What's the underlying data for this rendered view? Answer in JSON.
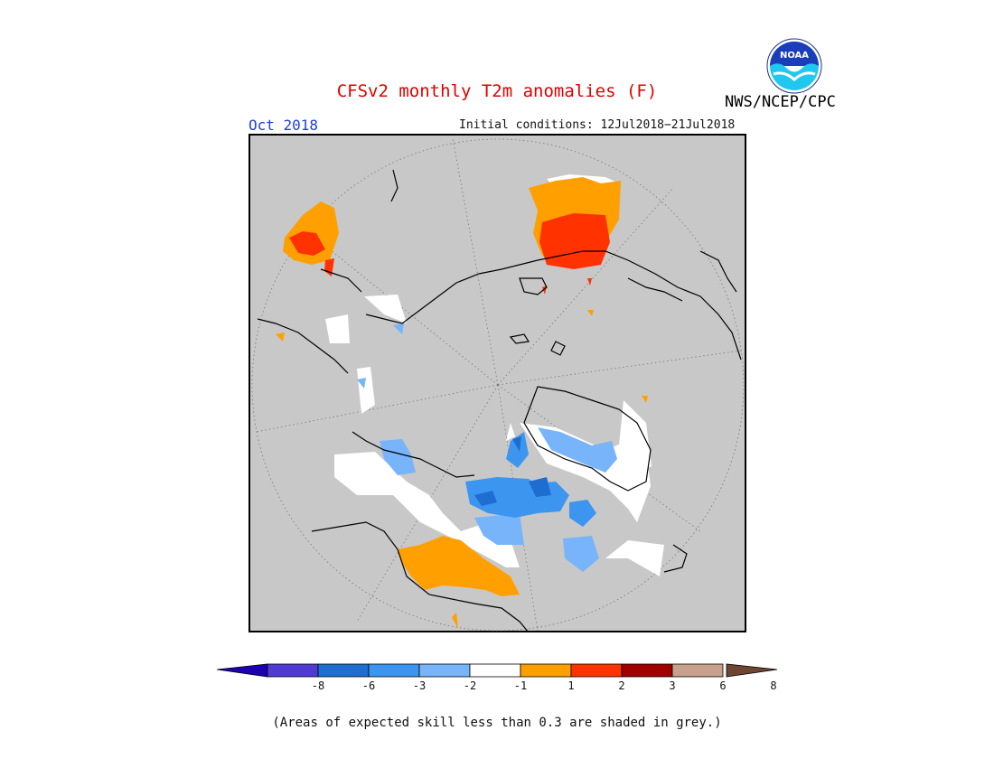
{
  "header": {
    "title": "CFSv2 monthly T2m anomalies (F)",
    "org": "NWS/NCEP/CPC",
    "logo_text": "NOAA",
    "target_month": "Oct 2018",
    "initial_conditions": "Initial conditions: 12Jul2018−21Jul2018"
  },
  "map": {
    "projection": "north polar stereographic",
    "background_color": "#c8c8c8",
    "grid": "dotted latitude/longitude lines"
  },
  "legend": {
    "colors": [
      "#1e00b4",
      "#503cd2",
      "#1e6ed2",
      "#3c96f0",
      "#78b4fa",
      "#ffffff",
      "#ffa000",
      "#ff3200",
      "#a00000",
      "#c8a08c",
      "#6e4632"
    ],
    "tick_labels": [
      "-8",
      "-6",
      "-3",
      "-2",
      "-1",
      "1",
      "2",
      "3",
      "6",
      "8"
    ],
    "note": "(Areas of expected skill less than 0.3 are shaded in grey.)"
  }
}
